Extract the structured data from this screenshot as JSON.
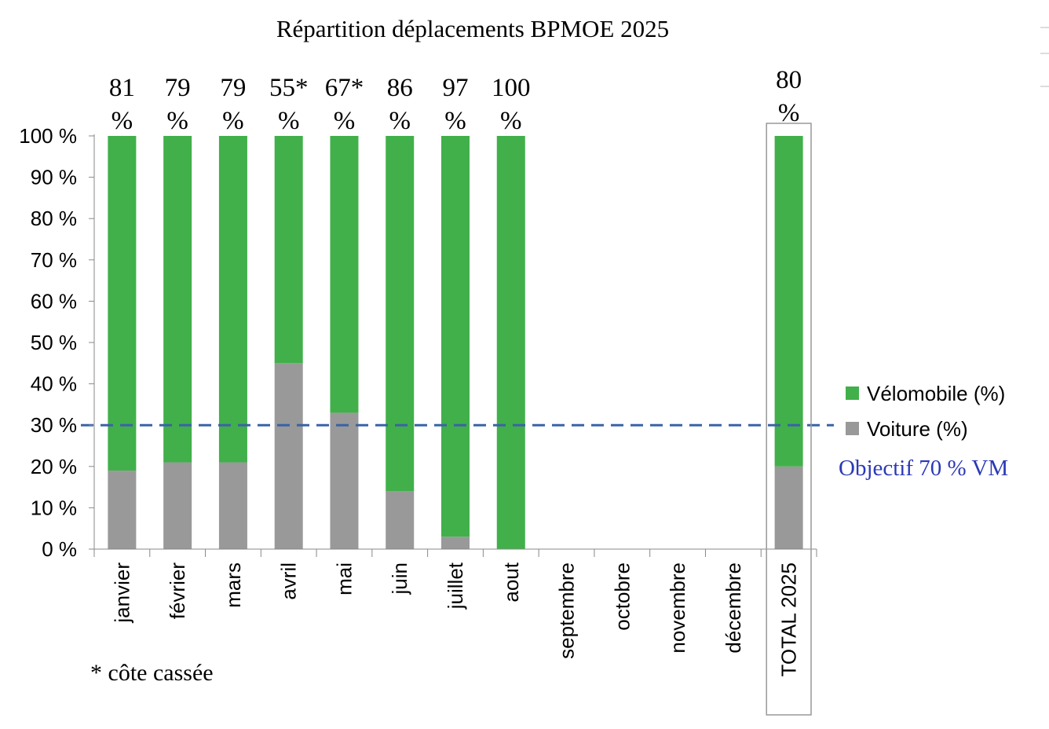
{
  "chart_data": {
    "type": "bar",
    "stacked": true,
    "title": "Répartition déplacements BPMOE 2025",
    "categories": [
      "janvier",
      "février",
      "mars",
      "avril",
      "mai",
      "juin",
      "juillet",
      "aout",
      "septembre",
      "octobre",
      "novembre",
      "décembre",
      "TOTAL 2025"
    ],
    "series": [
      {
        "name": "Voiture (%)",
        "color": "#999999",
        "values": [
          19,
          21,
          21,
          45,
          33,
          14,
          3,
          0,
          null,
          null,
          null,
          null,
          20
        ]
      },
      {
        "name": "Vélomobile (%)",
        "color": "#41b04a",
        "values": [
          81,
          79,
          79,
          55,
          67,
          86,
          97,
          100,
          null,
          null,
          null,
          null,
          80
        ]
      }
    ],
    "bar_label_numbers": [
      "81",
      "79",
      "79",
      "55*",
      "67*",
      "86",
      "97",
      "100",
      "",
      "",
      "",
      "",
      "80"
    ],
    "bar_label_unit": "%",
    "y_ticks": [
      "0 %",
      "10 %",
      "20 %",
      "30 %",
      "40 %",
      "50 %",
      "60 %",
      "70 %",
      "80 %",
      "90 %",
      "100 %"
    ],
    "ylim": [
      0,
      100
    ],
    "reference_line": {
      "value": 30,
      "color": "#3a63a6",
      "label": "Objectif 70 % VM",
      "label_color": "#2b39b8"
    },
    "legend": {
      "position": "right",
      "entries": [
        "Vélomobile (%)",
        "Voiture (%)"
      ]
    },
    "footnote": "* côte cassée",
    "xlabel": "",
    "ylabel": ""
  }
}
